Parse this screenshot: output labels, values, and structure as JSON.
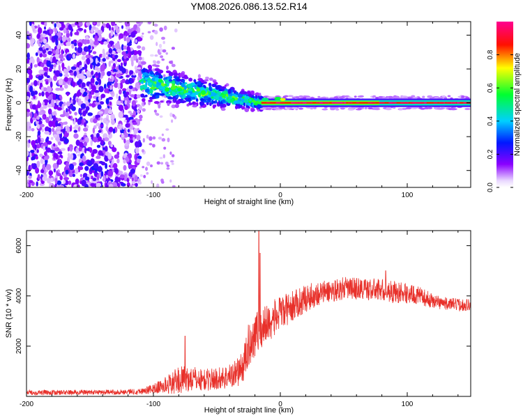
{
  "figure_title": "YM08.2026.086.13.52.R14",
  "colors": {
    "line": "#e8302a",
    "axis": "#000000",
    "cmap_stops": [
      "#ffffff",
      "#e6d6ff",
      "#7b00ff",
      "#0018ff",
      "#00c8ff",
      "#00ff40",
      "#ffff00",
      "#ff0000",
      "#ff00a0"
    ]
  },
  "chart_data": [
    {
      "type": "heatmap",
      "title": "",
      "xlabel": "Height of straight line (km)",
      "ylabel": "Frequency (Hz)",
      "xlim": [
        -200,
        150
      ],
      "ylim": [
        -50,
        48
      ],
      "xticks": [
        -200,
        -100,
        0,
        100
      ],
      "xtick_labels": [
        "-200",
        "-100",
        "0",
        "100"
      ],
      "yticks": [
        -40,
        -20,
        0,
        20,
        40
      ],
      "ytick_labels": [
        "-40",
        "-20",
        "0",
        "20",
        "40"
      ],
      "colorbar": {
        "label": "Normalized spectral amplitude",
        "range": [
          0,
          1
        ],
        "ticks": [
          0.0,
          0.2,
          0.4,
          0.6,
          0.8
        ],
        "tick_labels": [
          "0.0",
          "0.2",
          "0.4",
          "0.6",
          "0.8"
        ]
      },
      "regions": [
        {
          "name": "noise",
          "x_range": [
            -200,
            -110
          ],
          "f_range": [
            -50,
            48
          ],
          "amplitude": [
            0.05,
            0.25
          ]
        },
        {
          "name": "transition",
          "x_range": [
            -110,
            -15
          ],
          "f_center": [
            12,
            0
          ],
          "f_spread": 8,
          "amplitude": [
            0.1,
            0.5
          ]
        },
        {
          "name": "carrier",
          "x_range": [
            -15,
            150
          ],
          "f_center": 0,
          "amplitude": [
            0.5,
            1.0
          ]
        }
      ]
    },
    {
      "type": "line",
      "title": "",
      "xlabel": "Height of straight line (km)",
      "ylabel": "SNR (10 * v/v)",
      "xlim": [
        -200,
        150
      ],
      "ylim": [
        0,
        6600
      ],
      "xticks": [
        -200,
        -100,
        0,
        100
      ],
      "xtick_labels": [
        "-200",
        "-100",
        "0",
        "100"
      ],
      "yticks": [
        2000,
        4000,
        6000
      ],
      "ytick_labels": [
        "2000",
        "4000",
        "6000"
      ],
      "series": [
        {
          "name": "SNR",
          "envelope": {
            "x": [
              -200,
              -160,
              -130,
              -110,
              -100,
              -90,
              -80,
              -70,
              -60,
              -50,
              -40,
              -30,
              -25,
              -20,
              -15,
              -10,
              0,
              10,
              20,
              30,
              40,
              50,
              60,
              70,
              80,
              90,
              100,
              110,
              120,
              130,
              140,
              150
            ],
            "mean": [
              150,
              160,
              170,
              200,
              300,
              450,
              650,
              700,
              650,
              700,
              800,
              1100,
              2000,
              2500,
              2700,
              2900,
              3300,
              3600,
              3900,
              4100,
              4200,
              4300,
              4300,
              4250,
              4250,
              4150,
              4100,
              4000,
              3800,
              3700,
              3650,
              3650
            ],
            "noise": [
              100,
              100,
              100,
              120,
              200,
              350,
              550,
              500,
              450,
              450,
              500,
              650,
              900,
              900,
              900,
              800,
              700,
              600,
              550,
              500,
              450,
              450,
              450,
              450,
              450,
              450,
              400,
              350,
              300,
              250,
              250,
              250
            ]
          },
          "peaks": [
            {
              "x": -75,
              "y": 2400
            },
            {
              "x": -17,
              "y": 6600
            },
            {
              "x": -16,
              "y": 5700
            },
            {
              "x": 83,
              "y": 5000
            }
          ]
        }
      ]
    }
  ]
}
